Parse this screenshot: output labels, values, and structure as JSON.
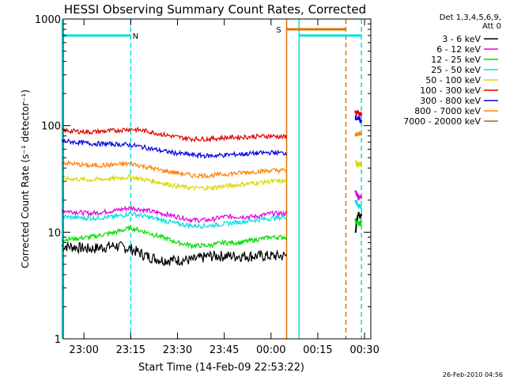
{
  "chart_data": {
    "type": "line",
    "title": "HESSI Observing Summary Count Rates, Corrected",
    "xlabel": "Start Time (14-Feb-09 22:53:22)",
    "ylabel": "Corrected Count Rate (s⁻¹ detector⁻¹)",
    "y_scale": "log",
    "ylim": [
      1,
      1000
    ],
    "xlim": [
      "22:53:22",
      "00:32:00"
    ],
    "grid": false,
    "legend_position": "top-right, outside plot",
    "legend_header": [
      "Det 1,3,4,5,6,9,",
      "Att 0"
    ],
    "x_ticks": [
      "23:00",
      "23:15",
      "23:30",
      "23:45",
      "00:00",
      "00:15",
      "00:30"
    ],
    "y_ticks": [
      "1",
      "10",
      "100",
      "1000"
    ],
    "x_times": [
      "22:53",
      "23:02",
      "23:10",
      "23:15",
      "23:20",
      "23:25",
      "23:30",
      "23:35",
      "23:40",
      "23:45",
      "23:50",
      "23:55",
      "00:00",
      "00:05",
      "00:27",
      "00:28",
      "00:29"
    ],
    "series": [
      {
        "name": "3 - 6 keV",
        "color": "#000000",
        "values": [
          7.5,
          7,
          7.5,
          7,
          6,
          5.5,
          5.5,
          5.5,
          6,
          6,
          6,
          6,
          6,
          6,
          10,
          15,
          14
        ]
      },
      {
        "name": "6 - 12 keV",
        "color": "#e000e0",
        "values": [
          16,
          15,
          16,
          17,
          16,
          15,
          14,
          13,
          13,
          14,
          14,
          14,
          15,
          15,
          24,
          22,
          21
        ]
      },
      {
        "name": "12 - 25 keV",
        "color": "#00dd00",
        "values": [
          8.5,
          9,
          10,
          11,
          10,
          9,
          8,
          7.5,
          7.5,
          8,
          8,
          8.5,
          9,
          9,
          13,
          12,
          12
        ]
      },
      {
        "name": "25 - 50 keV",
        "color": "#00e0e0",
        "values": [
          14,
          13.5,
          14,
          15,
          14,
          13,
          12,
          11.5,
          11.5,
          12,
          12.5,
          13,
          13.5,
          14,
          20,
          18,
          17
        ]
      },
      {
        "name": "50 - 100 keV",
        "color": "#d8d800",
        "values": [
          32,
          31,
          32,
          33,
          31,
          29,
          27,
          26,
          26,
          27,
          28,
          29,
          30,
          30,
          45,
          44,
          43
        ]
      },
      {
        "name": "100 - 300 keV",
        "color": "#e00000",
        "values": [
          90,
          87,
          90,
          93,
          89,
          83,
          78,
          75,
          75,
          77,
          78,
          79,
          80,
          78,
          135,
          130,
          125
        ]
      },
      {
        "name": "300 - 800 keV",
        "color": "#0000e0",
        "values": [
          72,
          68,
          67,
          66,
          62,
          58,
          55,
          53,
          52,
          53,
          54,
          55,
          56,
          55,
          120,
          115,
          110
        ]
      },
      {
        "name": "800 - 7000 keV",
        "color": "#ff8000",
        "values": [
          45,
          42,
          43,
          44,
          41,
          38,
          36,
          34,
          34,
          35,
          36,
          37,
          38,
          38,
          80,
          85,
          82
        ]
      },
      {
        "name": "7000 - 20000 keV",
        "color": "#a07000",
        "values": []
      }
    ],
    "annotations": [
      {
        "label": "N",
        "color": "#00e0e0",
        "x_time": "23:15",
        "level": 700,
        "x_start": "22:53",
        "x_end": "23:15"
      },
      {
        "label": "S",
        "color": "#e07000",
        "x_time": "00:04",
        "level": 800,
        "x_start": "00:05",
        "x_end": "00:24"
      },
      {
        "label": "",
        "color": "#00e0e0",
        "x_time": "00:09",
        "level": 700,
        "x_start": "00:09",
        "x_end": "00:29"
      }
    ],
    "vertical_markers": [
      {
        "style": "solid",
        "color": "#00e0e0",
        "x_time": "22:53"
      },
      {
        "style": "dashed",
        "color": "#00e0e0",
        "x_time": "23:15"
      },
      {
        "style": "solid",
        "color": "#e07000",
        "x_time": "00:05"
      },
      {
        "style": "solid",
        "color": "#00e0e0",
        "x_time": "00:09"
      },
      {
        "style": "dashed",
        "color": "#e07000",
        "x_time": "00:24"
      },
      {
        "style": "dashed",
        "color": "#00e0e0",
        "x_time": "00:29"
      }
    ],
    "footer": "26-Feb-2010 04:56"
  }
}
